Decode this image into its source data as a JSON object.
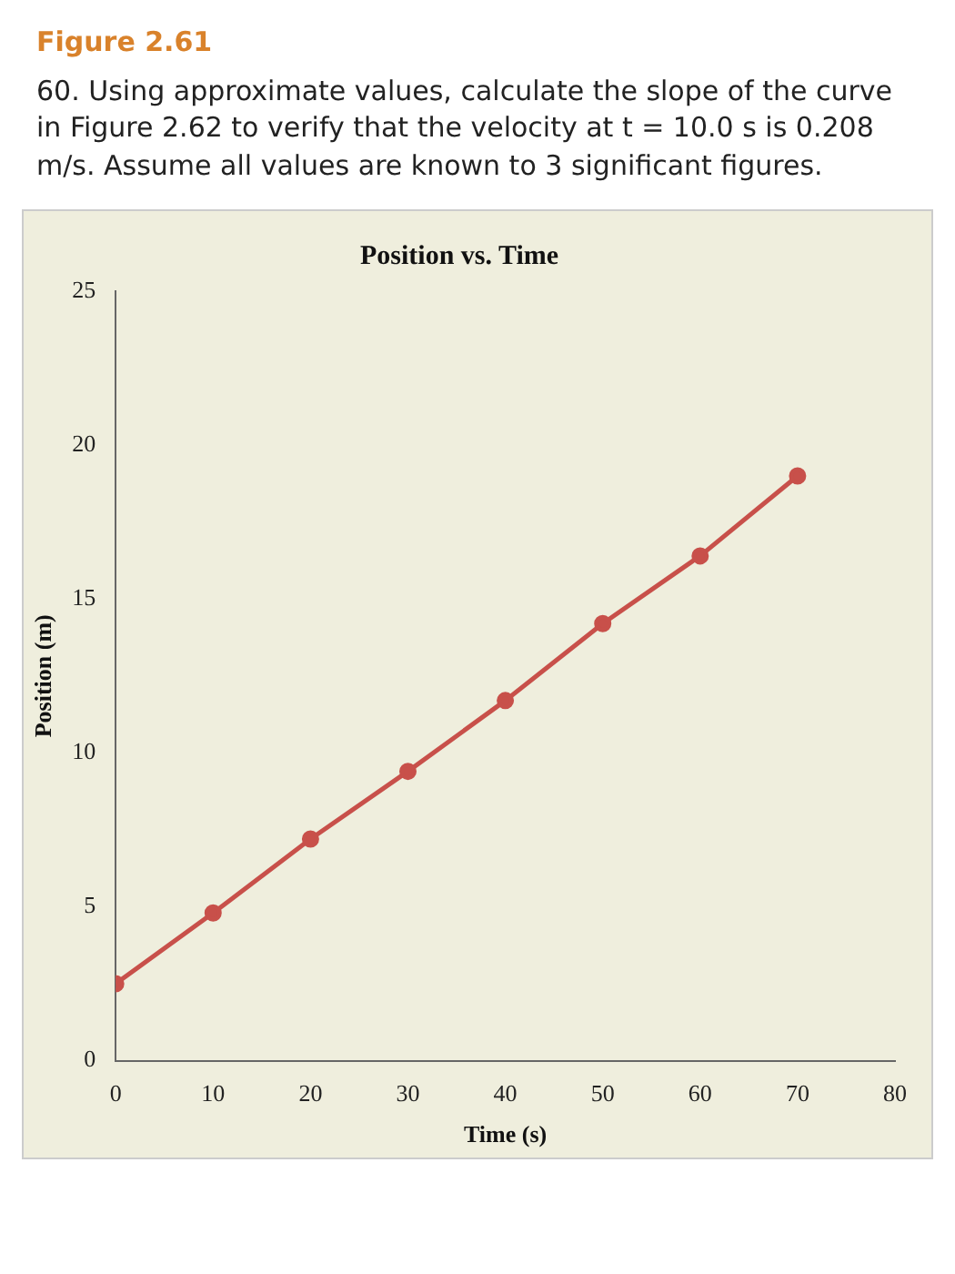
{
  "chart_data": {
    "type": "line",
    "title": "Position vs. Time",
    "xlabel": "Time (s)",
    "ylabel": "Position (m)",
    "x": [
      0,
      10,
      20,
      30,
      40,
      50,
      60,
      70
    ],
    "series": [
      {
        "color": "#c8504a",
        "values": [
          2.5,
          4.8,
          7.2,
          9.4,
          11.7,
          14.2,
          16.4,
          19.0
        ]
      }
    ],
    "xlim": [
      0,
      80
    ],
    "xticks": [
      0,
      10,
      20,
      30,
      40,
      50,
      60,
      70,
      80
    ],
    "ylim": [
      0,
      25
    ],
    "yticks": [
      0,
      5,
      10,
      15,
      20,
      25
    ],
    "grid": false,
    "legend": false,
    "marker": "circle",
    "line_style": "solid",
    "annotations": [
      "Figure 2.61",
      "60. Using approximate values, calculate the slope of the curve in Figure 2.62 to verify that the velocity at t = 10.0 s is 0.208 m/s. Assume all values are known to 3 significant figures."
    ]
  }
}
